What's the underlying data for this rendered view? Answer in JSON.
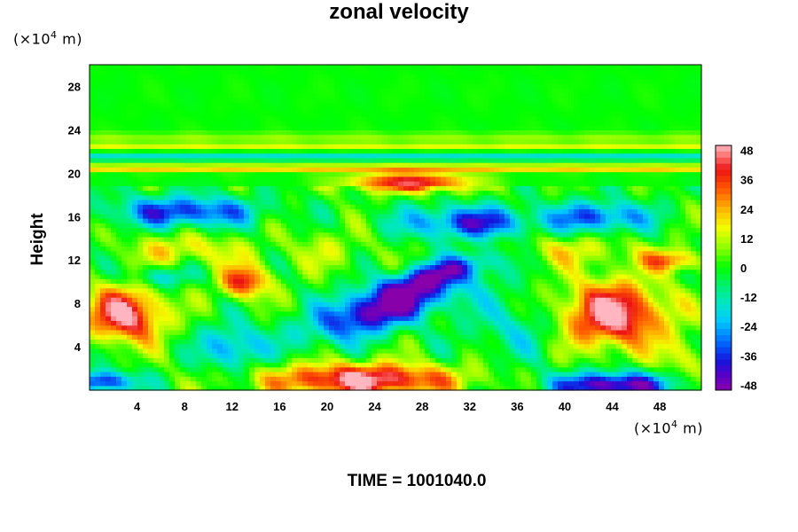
{
  "chart_data": {
    "type": "heatmap",
    "title": "zonal velocity",
    "ylabel": "Height",
    "x_unit": "(×10",
    "unit_exp": "4",
    "unit_tail": " m)",
    "y_unit": "(×10",
    "xlim": [
      0,
      51.5
    ],
    "ylim": [
      0,
      30
    ],
    "x_ticks": [
      "4",
      "8",
      "12",
      "16",
      "20",
      "24",
      "28",
      "32",
      "36",
      "40",
      "44",
      "48"
    ],
    "y_ticks": [
      "4",
      "8",
      "12",
      "16",
      "20",
      "24",
      "28"
    ],
    "colorbar": {
      "range": [
        -50,
        50
      ],
      "ticks": [
        "48",
        "36",
        "24",
        "12",
        "0",
        "-12",
        "-24",
        "-36",
        "-48"
      ]
    },
    "features": [
      {
        "x": 25,
        "y": 7.8,
        "value": -52,
        "sx": 6.5,
        "sy": 2.0,
        "rot": 0.35
      },
      {
        "x": 23,
        "y": 1.0,
        "value": 50,
        "sx": 8.0,
        "sy": 1.5,
        "rot": 0
      },
      {
        "x": 44,
        "y": 7.0,
        "value": 52,
        "sx": 4.5,
        "sy": 3.0,
        "rot": 0
      },
      {
        "x": 3,
        "y": 7.0,
        "value": 50,
        "sx": 3.2,
        "sy": 2.5,
        "rot": 0
      },
      {
        "x": 44,
        "y": 0.5,
        "value": -52,
        "sx": 5.0,
        "sy": 1.2,
        "rot": 0
      },
      {
        "x": 27,
        "y": 19.2,
        "value": 44,
        "sx": 5.0,
        "sy": 0.9,
        "rot": 0
      },
      {
        "x": 8,
        "y": 16.5,
        "value": -38,
        "sx": 6.0,
        "sy": 1.4,
        "rot": 0
      },
      {
        "x": 32,
        "y": 15.5,
        "value": -38,
        "sx": 5.5,
        "sy": 1.5,
        "rot": 0
      },
      {
        "x": 43,
        "y": 16.0,
        "value": -34,
        "sx": 4.0,
        "sy": 1.4,
        "rot": 0
      },
      {
        "x": 12,
        "y": 4.0,
        "value": -28,
        "sx": 2.5,
        "sy": 2.0,
        "rot": 0
      },
      {
        "x": 1,
        "y": 0.8,
        "value": -40,
        "sx": 3.0,
        "sy": 1.0,
        "rot": 0
      },
      {
        "x": 13,
        "y": 10.0,
        "value": 40,
        "sx": 2.0,
        "sy": 1.5,
        "rot": 0
      },
      {
        "x": 49,
        "y": 12.0,
        "value": 30,
        "sx": 2.5,
        "sy": 1.0,
        "rot": 0
      },
      {
        "x": 30,
        "y": 11.0,
        "value": -30,
        "sx": 5.0,
        "sy": 1.2,
        "rot": 0.3
      },
      {
        "x": 36,
        "y": 6.0,
        "value": -15,
        "sx": 4.0,
        "sy": 3.0,
        "rot": 0
      },
      {
        "x": 8,
        "y": 13.0,
        "value": 18,
        "sx": 5.0,
        "sy": 1.5,
        "rot": 0
      },
      {
        "x": 40,
        "y": 13.0,
        "value": 15,
        "sx": 6.0,
        "sy": 1.5,
        "rot": 0
      },
      {
        "x": 20,
        "y": 13.0,
        "value": 10,
        "sx": 4.0,
        "sy": 2.0,
        "rot": 0
      },
      {
        "x": 50,
        "y": 3.0,
        "value": 15,
        "sx": 2.0,
        "sy": 2.0,
        "rot": 0
      },
      {
        "x": 6,
        "y": 10.5,
        "value": -20,
        "sx": 2.5,
        "sy": 1.0,
        "rot": 0
      }
    ],
    "bands": [
      {
        "y": 21.5,
        "value": -22,
        "sy": 0.25
      },
      {
        "y": 20.5,
        "value": 25,
        "sy": 0.3
      },
      {
        "y": 22.6,
        "value": 16,
        "sy": 0.3
      },
      {
        "y": 23.4,
        "value": 8,
        "sy": 0.4
      }
    ],
    "grid": false,
    "legend": "colorbar-right"
  },
  "footer": {
    "time": "TIME = 1001040.0"
  }
}
